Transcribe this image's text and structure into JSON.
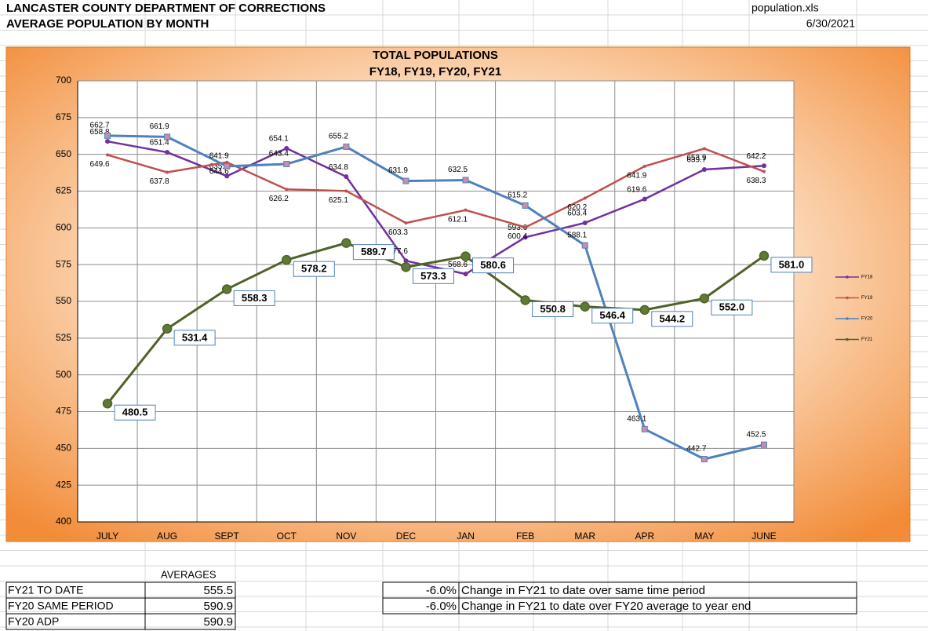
{
  "header": {
    "title": "LANCASTER COUNTY DEPARTMENT OF CORRECTIONS",
    "subtitle": "AVERAGE POPULATION BY MONTH",
    "file": "population.xls",
    "date": "6/30/2021"
  },
  "chart_data": {
    "type": "line",
    "title": "TOTAL POPULATIONS",
    "subtitle": "FY18, FY19, FY20, FY21",
    "categories": [
      "JULY",
      "AUG",
      "SEPT",
      "OCT",
      "NOV",
      "DEC",
      "JAN",
      "FEB",
      "MAR",
      "APR",
      "MAY",
      "JUNE"
    ],
    "ylim": [
      400,
      700
    ],
    "yticks": [
      400,
      425,
      450,
      475,
      500,
      525,
      550,
      575,
      600,
      625,
      650,
      675,
      700
    ],
    "grid": true,
    "legend": "right",
    "series": [
      {
        "name": "FY18",
        "color": "#7030a0",
        "values": [
          658.8,
          651.4,
          635.2,
          654.1,
          634.8,
          577.6,
          568.6,
          593.6,
          603.4,
          619.6,
          639.7,
          642.2
        ]
      },
      {
        "name": "FY19",
        "color": "#c0504d",
        "values": [
          649.6,
          637.8,
          644.6,
          626.2,
          625.1,
          603.3,
          612.1,
          600.4,
          620.2,
          641.9,
          653.9,
          638.3
        ]
      },
      {
        "name": "FY20",
        "color": "#4f81bd",
        "values": [
          662.7,
          661.9,
          641.9,
          643.4,
          655.2,
          631.9,
          632.5,
          615.2,
          588.1,
          463.1,
          442.7,
          452.5
        ]
      },
      {
        "name": "FY21",
        "color": "#4f6228",
        "values": [
          480.5,
          531.4,
          558.3,
          578.2,
          589.7,
          573.3,
          580.6,
          550.8,
          546.4,
          544.2,
          552,
          581
        ],
        "value_labels": [
          "480.5",
          "531.4",
          "558.3",
          "578.2",
          "589.7",
          "573.3",
          "580.6",
          "550.8",
          "546.4",
          "544.2",
          "552.0",
          "581.0"
        ]
      }
    ]
  },
  "averages": {
    "header": "AVERAGES",
    "rows": [
      [
        "FY21 TO DATE",
        "555.5"
      ],
      [
        "FY20 SAME PERIOD",
        "590.9"
      ],
      [
        "FY20 ADP",
        "590.9"
      ]
    ]
  },
  "changes": {
    "rows": [
      [
        "-6.0%",
        "Change in FY21 to date over same time period"
      ],
      [
        "-6.0%",
        "Change in FY21 to date over FY20 average to year end"
      ]
    ]
  }
}
